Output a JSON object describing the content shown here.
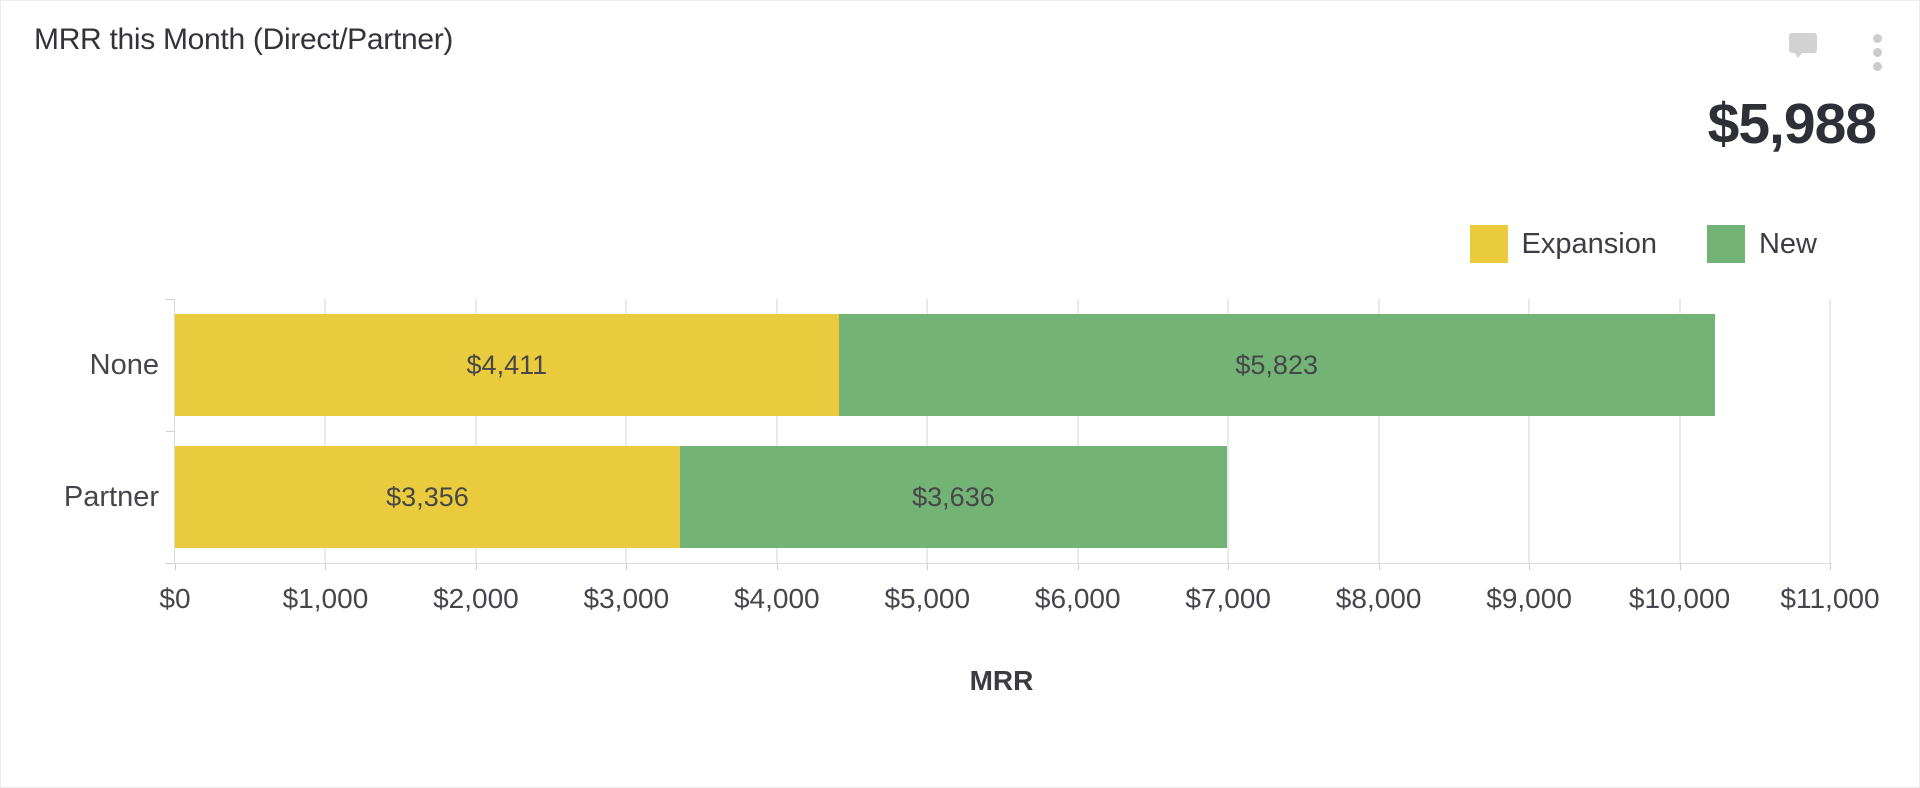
{
  "widget": {
    "title": "MRR this Month (Direct/Partner)",
    "big_number": "$5,988",
    "icons": [
      "comment-icon",
      "kebab-menu-icon"
    ]
  },
  "chart_data": {
    "type": "bar",
    "orientation": "horizontal",
    "stacked": true,
    "title": "MRR this Month (Direct/Partner)",
    "categories": [
      "None",
      "Partner"
    ],
    "series": [
      {
        "name": "Expansion",
        "color": "#e9cb3d",
        "values": [
          4411,
          3356
        ]
      },
      {
        "name": "New",
        "color": "#74b376",
        "values": [
          5823,
          3636
        ]
      }
    ],
    "category_totals": [
      10234,
      6992
    ],
    "xlabel": "MRR",
    "ylabel": "",
    "xlim": [
      0,
      11000
    ],
    "x_ticks": [
      0,
      1000,
      2000,
      3000,
      4000,
      5000,
      6000,
      7000,
      8000,
      9000,
      10000,
      11000
    ],
    "value_prefix": "$",
    "grid": true,
    "legend_position": "top-right"
  }
}
